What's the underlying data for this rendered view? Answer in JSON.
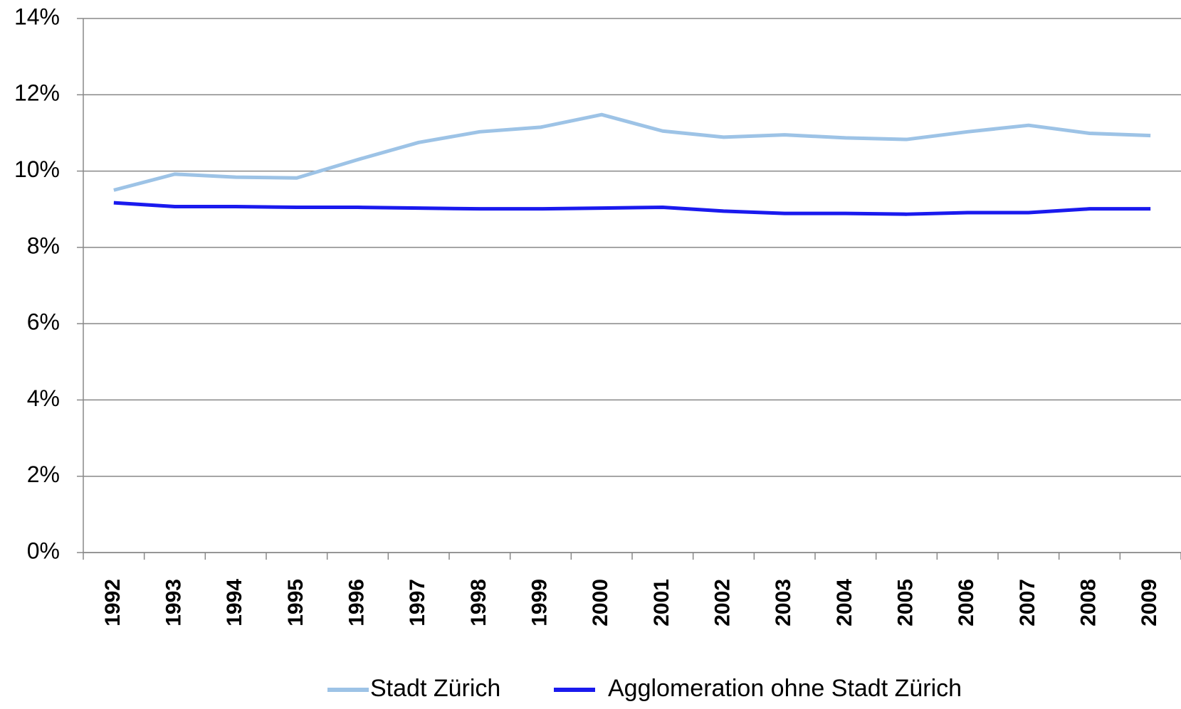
{
  "chart_data": {
    "type": "line",
    "categories": [
      "1992",
      "1993",
      "1994",
      "1995",
      "1996",
      "1997",
      "1998",
      "1999",
      "2000",
      "2001",
      "2002",
      "2003",
      "2004",
      "2005",
      "2006",
      "2007",
      "2008",
      "2009"
    ],
    "series": [
      {
        "name": "Stadt Zürich",
        "color": "#9dc3e6",
        "values": [
          9.5,
          9.92,
          9.84,
          9.82,
          10.3,
          10.75,
          11.03,
          11.15,
          11.48,
          11.05,
          10.89,
          10.95,
          10.87,
          10.83,
          11.03,
          11.2,
          10.99,
          10.93
        ]
      },
      {
        "name": "Agglomeration ohne Stadt Zürich",
        "color": "#1a1aee",
        "values": [
          9.17,
          9.07,
          9.07,
          9.05,
          9.05,
          9.03,
          9.01,
          9.01,
          9.03,
          9.05,
          8.95,
          8.89,
          8.89,
          8.87,
          8.91,
          8.91,
          9.01,
          9.01
        ]
      }
    ],
    "ylim": [
      0,
      14
    ],
    "yticks": [
      {
        "value": 0,
        "label": "0%"
      },
      {
        "value": 2,
        "label": "2%"
      },
      {
        "value": 4,
        "label": "4%"
      },
      {
        "value": 6,
        "label": "6%"
      },
      {
        "value": 8,
        "label": "8%"
      },
      {
        "value": 10,
        "label": "10%"
      },
      {
        "value": 12,
        "label": "12%"
      },
      {
        "value": 14,
        "label": "14%"
      }
    ],
    "grid": true,
    "legend": "bottom"
  }
}
